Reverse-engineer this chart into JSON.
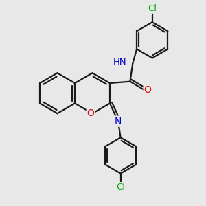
{
  "bg_color": "#e8e8e8",
  "bond_color": "#1a1a1a",
  "bond_width": 1.6,
  "atom_colors": {
    "O": "#dd0000",
    "N": "#0000cc",
    "Cl": "#00aa00",
    "C": "#1a1a1a"
  },
  "font_size": 9.5,
  "xlim": [
    -3.0,
    3.2
  ],
  "ylim": [
    -3.2,
    3.0
  ],
  "figsize": [
    3.0,
    3.0
  ],
  "dpi": 100
}
